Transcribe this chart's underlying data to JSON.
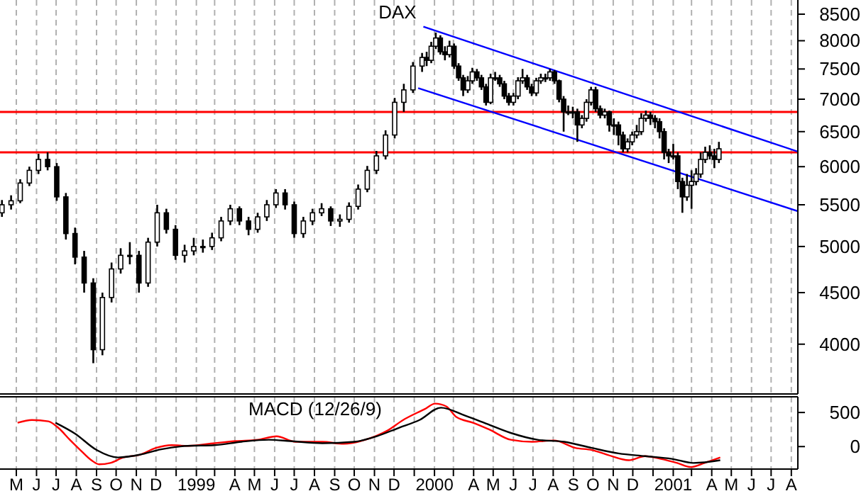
{
  "chart_data": [
    {
      "type": "candlestick",
      "title": "DAX",
      "log": "y",
      "grid": "x",
      "tick_labels": "y",
      "xlim": [
        "1998-04-20",
        "2001-08-25"
      ],
      "ylim": [
        3570,
        8780
      ],
      "yticks": [
        4000,
        4500,
        5000,
        5500,
        6000,
        6500,
        7000,
        7500,
        8000,
        8500
      ],
      "xticks": [
        {
          "value": "1998-05-15",
          "label": null
        },
        {
          "value": "1998-06-15",
          "label": null
        },
        {
          "value": "1998-07-15",
          "label": null
        },
        {
          "value": "1998-08-15",
          "label": null
        },
        {
          "value": "1998-09-15",
          "label": null
        },
        {
          "value": "1998-10-15",
          "label": null
        },
        {
          "value": "1998-11-15",
          "label": null
        },
        {
          "value": "1998-12-15",
          "label": null
        },
        {
          "value": "1999-01-15",
          "label": null
        },
        {
          "value": "1999-02-15",
          "label": null
        },
        {
          "value": "1999-03-15",
          "label": null
        },
        {
          "value": "1999-04-15",
          "label": null
        },
        {
          "value": "1999-05-15",
          "label": null
        },
        {
          "value": "1999-06-15",
          "label": null
        },
        {
          "value": "1999-07-15",
          "label": null
        },
        {
          "value": "1999-08-15",
          "label": null
        },
        {
          "value": "1999-09-15",
          "label": null
        },
        {
          "value": "1999-10-15",
          "label": null
        },
        {
          "value": "1999-11-15",
          "label": null
        },
        {
          "value": "1999-12-15",
          "label": null
        },
        {
          "value": "2000-01-15",
          "label": null
        },
        {
          "value": "2000-02-15",
          "label": null
        },
        {
          "value": "2000-03-15",
          "label": null
        },
        {
          "value": "2000-04-15",
          "label": null
        },
        {
          "value": "2000-05-15",
          "label": null
        },
        {
          "value": "2000-06-15",
          "label": null
        },
        {
          "value": "2000-07-15",
          "label": null
        },
        {
          "value": "2000-08-15",
          "label": null
        },
        {
          "value": "2000-09-15",
          "label": null
        },
        {
          "value": "2000-10-15",
          "label": null
        },
        {
          "value": "2000-11-15",
          "label": null
        },
        {
          "value": "2000-12-15",
          "label": null
        },
        {
          "value": "2001-01-15",
          "label": null
        },
        {
          "value": "2001-02-15",
          "label": null
        },
        {
          "value": "2001-03-15",
          "label": null
        },
        {
          "value": "2001-04-15",
          "label": null
        },
        {
          "value": "2001-05-15",
          "label": null
        },
        {
          "value": "2001-06-15",
          "label": null
        },
        {
          "value": "2001-07-15",
          "label": null
        },
        {
          "value": "2001-08-15",
          "label": null
        }
      ],
      "x": [
        "1998-04-23",
        "1998-05-07",
        "1998-05-21",
        "1998-06-04",
        "1998-06-18",
        "1998-07-02",
        "1998-07-16",
        "1998-07-30",
        "1998-08-13",
        "1998-08-27",
        "1998-09-10",
        "1998-09-24",
        "1998-10-08",
        "1998-10-22",
        "1998-11-05",
        "1998-11-19",
        "1998-12-03",
        "1998-12-17",
        "1998-12-31",
        "1999-01-14",
        "1999-01-28",
        "1999-02-11",
        "1999-02-25",
        "1999-03-11",
        "1999-03-25",
        "1999-04-08",
        "1999-04-22",
        "1999-05-06",
        "1999-05-20",
        "1999-06-03",
        "1999-06-17",
        "1999-07-01",
        "1999-07-15",
        "1999-07-29",
        "1999-08-12",
        "1999-08-26",
        "1999-09-09",
        "1999-09-23",
        "1999-10-07",
        "1999-10-21",
        "1999-11-04",
        "1999-11-18",
        "1999-12-02",
        "1999-12-16",
        "1999-12-30",
        "2000-01-13",
        "2000-01-27",
        "2000-02-03",
        "2000-02-10",
        "2000-02-17",
        "2000-02-24",
        "2000-03-02",
        "2000-03-09",
        "2000-03-16",
        "2000-03-23",
        "2000-03-30",
        "2000-04-06",
        "2000-04-13",
        "2000-04-20",
        "2000-04-27",
        "2000-05-04",
        "2000-05-11",
        "2000-05-18",
        "2000-05-25",
        "2000-06-01",
        "2000-06-08",
        "2000-06-15",
        "2000-06-22",
        "2000-06-29",
        "2000-07-06",
        "2000-07-13",
        "2000-07-20",
        "2000-07-27",
        "2000-08-03",
        "2000-08-10",
        "2000-08-17",
        "2000-08-24",
        "2000-08-31",
        "2000-09-07",
        "2000-09-14",
        "2000-09-21",
        "2000-09-28",
        "2000-10-05",
        "2000-10-12",
        "2000-10-19",
        "2000-10-26",
        "2000-11-02",
        "2000-11-09",
        "2000-11-16",
        "2000-11-23",
        "2000-11-30",
        "2000-12-07",
        "2000-12-14",
        "2000-12-21",
        "2000-12-28",
        "2001-01-04",
        "2001-01-11",
        "2001-01-18",
        "2001-01-25",
        "2001-02-01",
        "2001-02-08",
        "2001-02-15",
        "2001-02-22",
        "2001-03-01",
        "2001-03-08",
        "2001-03-15",
        "2001-03-22",
        "2001-03-29",
        "2001-04-05",
        "2001-04-12",
        "2001-04-19",
        "2001-04-26"
      ],
      "ohlc": [
        [
          5400,
          5560,
          5350,
          5500
        ],
        [
          5500,
          5620,
          5440,
          5550
        ],
        [
          5550,
          5830,
          5520,
          5780
        ],
        [
          5780,
          6000,
          5740,
          5950
        ],
        [
          5950,
          6180,
          5900,
          6100
        ],
        [
          6100,
          6200,
          5950,
          6000
        ],
        [
          6000,
          6050,
          5550,
          5600
        ],
        [
          5600,
          5650,
          5080,
          5150
        ],
        [
          5150,
          5220,
          4800,
          4880
        ],
        [
          4880,
          4950,
          4500,
          4600
        ],
        [
          4600,
          4650,
          3830,
          3950
        ],
        [
          3950,
          4500,
          3900,
          4450
        ],
        [
          4450,
          4820,
          4400,
          4750
        ],
        [
          4750,
          4980,
          4700,
          4900
        ],
        [
          4900,
          5050,
          4800,
          4900
        ],
        [
          4900,
          4950,
          4500,
          4600
        ],
        [
          4600,
          5100,
          4560,
          5050
        ],
        [
          5050,
          5500,
          5000,
          5400
        ],
        [
          5400,
          5450,
          5150,
          5200
        ],
        [
          5200,
          5250,
          4850,
          4900
        ],
        [
          4900,
          5020,
          4820,
          4950
        ],
        [
          4950,
          5100,
          4900,
          5000
        ],
        [
          5000,
          5080,
          4930,
          5000
        ],
        [
          5000,
          5160,
          4960,
          5100
        ],
        [
          5100,
          5350,
          5060,
          5300
        ],
        [
          5300,
          5500,
          5250,
          5450
        ],
        [
          5450,
          5480,
          5250,
          5300
        ],
        [
          5300,
          5350,
          5130,
          5200
        ],
        [
          5200,
          5400,
          5160,
          5350
        ],
        [
          5350,
          5560,
          5300,
          5500
        ],
        [
          5500,
          5700,
          5460,
          5650
        ],
        [
          5650,
          5700,
          5440,
          5500
        ],
        [
          5500,
          5540,
          5100,
          5150
        ],
        [
          5150,
          5350,
          5100,
          5300
        ],
        [
          5300,
          5450,
          5250,
          5400
        ],
        [
          5400,
          5520,
          5360,
          5450
        ],
        [
          5450,
          5480,
          5240,
          5300
        ],
        [
          5300,
          5380,
          5230,
          5320
        ],
        [
          5320,
          5530,
          5280,
          5480
        ],
        [
          5480,
          5760,
          5440,
          5700
        ],
        [
          5700,
          6010,
          5660,
          5950
        ],
        [
          5950,
          6220,
          5900,
          6150
        ],
        [
          6150,
          6520,
          6100,
          6450
        ],
        [
          6450,
          7020,
          6400,
          6950
        ],
        [
          6950,
          7250,
          6800,
          7150
        ],
        [
          7150,
          7620,
          7100,
          7550
        ],
        [
          7550,
          7780,
          7450,
          7700
        ],
        [
          7700,
          7800,
          7550,
          7650
        ],
        [
          7650,
          7980,
          7600,
          7900
        ],
        [
          7900,
          8150,
          7850,
          8050
        ],
        [
          8050,
          8100,
          7750,
          7800
        ],
        [
          7800,
          7900,
          7650,
          7750
        ],
        [
          7750,
          8000,
          7700,
          7900
        ],
        [
          7900,
          7950,
          7500,
          7550
        ],
        [
          7550,
          7600,
          7300,
          7350
        ],
        [
          7350,
          7400,
          7050,
          7150
        ],
        [
          7150,
          7380,
          7100,
          7300
        ],
        [
          7300,
          7520,
          7250,
          7450
        ],
        [
          7450,
          7500,
          7300,
          7350
        ],
        [
          7350,
          7400,
          7150,
          7200
        ],
        [
          7200,
          7250,
          6900,
          6950
        ],
        [
          6950,
          7420,
          6920,
          7350
        ],
        [
          7350,
          7450,
          7300,
          7350
        ],
        [
          7350,
          7400,
          7200,
          7250
        ],
        [
          7250,
          7300,
          7000,
          7050
        ],
        [
          7050,
          7100,
          6900,
          6950
        ],
        [
          6950,
          7100,
          6900,
          7050
        ],
        [
          7050,
          7360,
          7000,
          7300
        ],
        [
          7300,
          7500,
          7250,
          7350
        ],
        [
          7350,
          7400,
          7150,
          7200
        ],
        [
          7200,
          7250,
          7050,
          7100
        ],
        [
          7100,
          7350,
          7050,
          7300
        ],
        [
          7300,
          7420,
          7250,
          7350
        ],
        [
          7350,
          7420,
          7280,
          7350
        ],
        [
          7350,
          7500,
          7300,
          7450
        ],
        [
          7450,
          7480,
          7250,
          7300
        ],
        [
          7300,
          7320,
          6950,
          7000
        ],
        [
          7000,
          7050,
          6500,
          6800
        ],
        [
          6800,
          6900,
          6750,
          6800
        ],
        [
          6800,
          6880,
          6700,
          6800
        ],
        [
          6800,
          6850,
          6350,
          6600
        ],
        [
          6600,
          6750,
          6550,
          6700
        ],
        [
          6700,
          7000,
          6650,
          6950
        ],
        [
          6950,
          7200,
          6900,
          7150
        ],
        [
          7150,
          7200,
          6800,
          6850
        ],
        [
          6850,
          6900,
          6700,
          6750
        ],
        [
          6750,
          6850,
          6700,
          6800
        ],
        [
          6800,
          6820,
          6500,
          6600
        ],
        [
          6600,
          6700,
          6450,
          6600
        ],
        [
          6600,
          6650,
          6300,
          6450
        ],
        [
          6450,
          6500,
          6200,
          6250
        ],
        [
          6250,
          6400,
          6200,
          6350
        ],
        [
          6350,
          6500,
          6300,
          6450
        ],
        [
          6450,
          6600,
          6400,
          6500
        ],
        [
          6500,
          6780,
          6450,
          6700
        ],
        [
          6700,
          6820,
          6650,
          6750
        ],
        [
          6750,
          6800,
          6600,
          6700
        ],
        [
          6700,
          6750,
          6550,
          6650
        ],
        [
          6650,
          6700,
          6400,
          6500
        ],
        [
          6500,
          6550,
          6100,
          6200
        ],
        [
          6200,
          6250,
          6050,
          6150
        ],
        [
          6150,
          6320,
          6100,
          6150
        ],
        [
          6150,
          6200,
          5700,
          5800
        ],
        [
          5800,
          5850,
          5400,
          5600
        ],
        [
          5600,
          5900,
          5550,
          5750
        ],
        [
          5750,
          5950,
          5450,
          5800
        ],
        [
          5800,
          5980,
          5750,
          5900
        ],
        [
          5900,
          6200,
          5850,
          6100
        ],
        [
          6100,
          6280,
          6050,
          6200
        ],
        [
          6200,
          6300,
          6100,
          6150
        ],
        [
          6150,
          6250,
          5980,
          6100
        ],
        [
          6100,
          6350,
          6050,
          6250
        ]
      ],
      "series": [
        {
          "type": "line",
          "color": "#0000ff",
          "x": [
            "2000-01-29",
            "2001-08-25"
          ],
          "values": [
            8260,
            6210
          ]
        },
        {
          "type": "line",
          "color": "#0000ff",
          "x": [
            "2000-01-21",
            "2001-08-25"
          ],
          "values": [
            7180,
            5420
          ]
        }
      ],
      "ref_lines": [
        {
          "axis": "y",
          "value": 6800,
          "color": "#ff0000"
        },
        {
          "axis": "y",
          "value": 6200,
          "color": "#ff0000"
        }
      ]
    },
    {
      "type": "line",
      "title": "MACD (12/26/9)",
      "grid": "x",
      "xlim": [
        "1998-04-20",
        "2001-08-25"
      ],
      "ylim": [
        -330,
        730
      ],
      "yticks": [
        0,
        500
      ],
      "xticks": [
        {
          "value": "1998-05-15",
          "label": "M"
        },
        {
          "value": "1998-06-15",
          "label": "J"
        },
        {
          "value": "1998-07-15",
          "label": "J"
        },
        {
          "value": "1998-08-15",
          "label": "A"
        },
        {
          "value": "1998-09-15",
          "label": "S"
        },
        {
          "value": "1998-10-15",
          "label": "O"
        },
        {
          "value": "1998-11-15",
          "label": "N"
        },
        {
          "value": "1998-12-15",
          "label": "D"
        },
        {
          "value": "1999-01-15",
          "label": null
        },
        {
          "value": "1999-02-15",
          "label": "1999"
        },
        {
          "value": "1999-03-15",
          "label": null
        },
        {
          "value": "1999-04-15",
          "label": "A"
        },
        {
          "value": "1999-05-15",
          "label": "M"
        },
        {
          "value": "1999-06-15",
          "label": "J"
        },
        {
          "value": "1999-07-15",
          "label": "J"
        },
        {
          "value": "1999-08-15",
          "label": "A"
        },
        {
          "value": "1999-09-15",
          "label": "S"
        },
        {
          "value": "1999-10-15",
          "label": "O"
        },
        {
          "value": "1999-11-15",
          "label": "N"
        },
        {
          "value": "1999-12-15",
          "label": "D"
        },
        {
          "value": "2000-01-15",
          "label": null
        },
        {
          "value": "2000-02-15",
          "label": "2000"
        },
        {
          "value": "2000-03-15",
          "label": null
        },
        {
          "value": "2000-04-15",
          "label": "A"
        },
        {
          "value": "2000-05-15",
          "label": "M"
        },
        {
          "value": "2000-06-15",
          "label": "J"
        },
        {
          "value": "2000-07-15",
          "label": "J"
        },
        {
          "value": "2000-08-15",
          "label": "A"
        },
        {
          "value": "2000-09-15",
          "label": "S"
        },
        {
          "value": "2000-10-15",
          "label": "O"
        },
        {
          "value": "2000-11-15",
          "label": "N"
        },
        {
          "value": "2000-12-15",
          "label": "D"
        },
        {
          "value": "2001-01-15",
          "label": null
        },
        {
          "value": "2001-02-15",
          "label": "2001"
        },
        {
          "value": "2001-03-15",
          "label": null
        },
        {
          "value": "2001-04-15",
          "label": "A"
        },
        {
          "value": "2001-05-15",
          "label": "M"
        },
        {
          "value": "2001-06-15",
          "label": "J"
        },
        {
          "value": "2001-07-15",
          "label": "J"
        },
        {
          "value": "2001-08-15",
          "label": "A"
        }
      ],
      "series": [
        {
          "color": "#ff0000",
          "x": [
            "1998-05-17",
            "1998-06-08",
            "1998-07-03",
            "1998-07-19",
            "1998-08-05",
            "1998-08-21",
            "1998-09-07",
            "1998-09-19",
            "1998-10-06",
            "1998-10-26",
            "1998-11-20",
            "1998-12-15",
            "1999-01-08",
            "1999-02-02",
            "1999-03-15",
            "1999-04-17",
            "1999-05-20",
            "1999-06-18",
            "1999-07-17",
            "1999-08-27",
            "1999-09-29",
            "1999-11-01",
            "1999-12-04",
            "1999-12-29",
            "2000-01-31",
            "2000-02-16",
            "2000-03-04",
            "2000-03-20",
            "2000-04-14",
            "2000-05-09",
            "2000-06-11",
            "2000-07-14",
            "2000-08-16",
            "2000-09-18",
            "2000-10-13",
            "2000-11-06",
            "2000-12-09",
            "2001-01-03",
            "2001-01-27",
            "2001-02-21",
            "2001-03-14",
            "2001-04-04",
            "2001-04-28"
          ],
          "values": [
            350,
            390,
            370,
            270,
            100,
            -50,
            -200,
            -260,
            -240,
            -160,
            -120,
            -20,
            20,
            10,
            50,
            80,
            100,
            150,
            70,
            70,
            40,
            100,
            230,
            390,
            550,
            630,
            590,
            430,
            350,
            250,
            100,
            70,
            90,
            -20,
            -50,
            -120,
            -200,
            -140,
            -180,
            -240,
            -300,
            -240,
            -160
          ]
        },
        {
          "color": "#000000",
          "x": [
            "1998-07-14",
            "1998-08-13",
            "1998-09-15",
            "1998-10-18",
            "1998-11-20",
            "1998-12-23",
            "1999-02-02",
            "1999-03-15",
            "1999-04-25",
            "1999-06-06",
            "1999-07-09",
            "1999-08-27",
            "1999-10-15",
            "1999-11-18",
            "1999-12-21",
            "2000-01-23",
            "2000-02-25",
            "2000-03-29",
            "2000-05-01",
            "2000-06-11",
            "2000-07-22",
            "2000-09-01",
            "2000-10-13",
            "2000-11-23",
            "2001-01-03",
            "2001-02-13",
            "2001-03-18",
            "2001-04-28"
          ],
          "values": [
            350,
            190,
            -50,
            -160,
            -120,
            -40,
            10,
            20,
            70,
            100,
            80,
            50,
            70,
            150,
            270,
            390,
            570,
            470,
            350,
            200,
            100,
            70,
            -20,
            -100,
            -140,
            -180,
            -240,
            -200
          ]
        }
      ]
    }
  ]
}
